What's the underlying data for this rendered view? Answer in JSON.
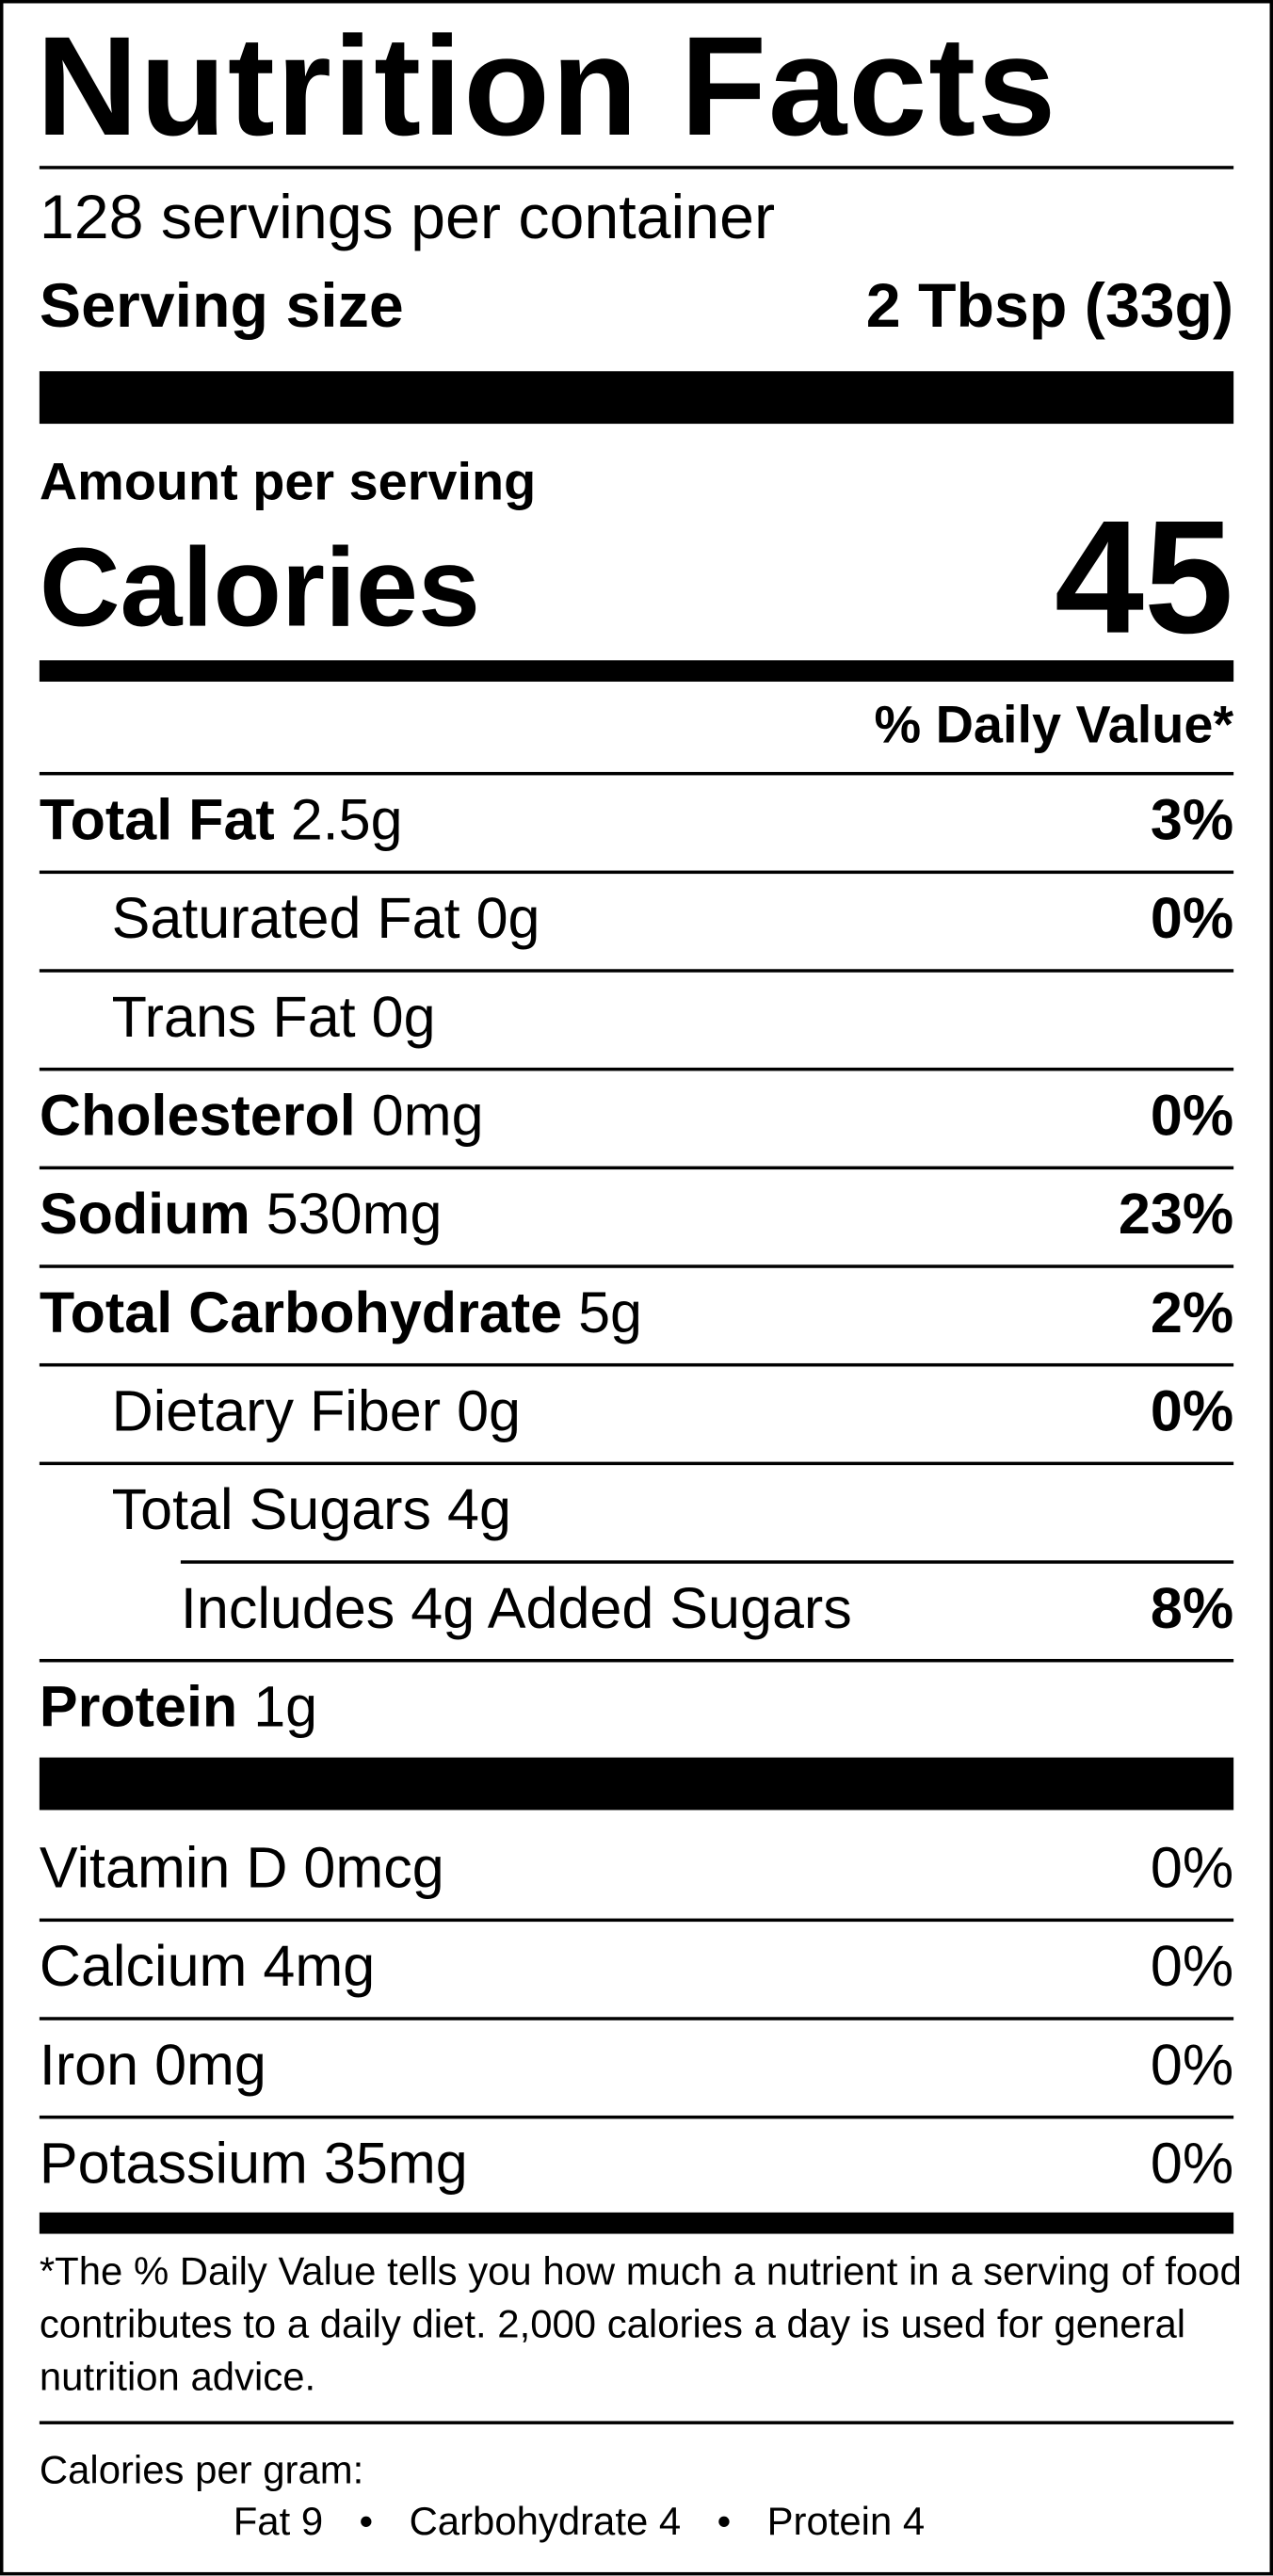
{
  "title": "Nutrition Facts",
  "servings": "128 servings per container",
  "serving_size": {
    "label": "Serving size",
    "value": "2 Tbsp (33g)"
  },
  "amount_per_serving": "Amount per serving",
  "calories": {
    "label": "Calories",
    "value": "45"
  },
  "daily_value_header": "% Daily Value*",
  "nutrients": [
    {
      "name": "Total Fat",
      "amount": "2.5g",
      "dv": "3%",
      "bold": true,
      "indent": 0
    },
    {
      "name": "Saturated Fat",
      "amount": "0g",
      "dv": "0%",
      "bold": false,
      "indent": 1
    },
    {
      "name": "Trans Fat",
      "amount": "0g",
      "bold": false,
      "indent": 1
    },
    {
      "name": "Cholesterol",
      "amount": "0mg",
      "dv": "0%",
      "bold": true,
      "indent": 0
    },
    {
      "name": "Sodium",
      "amount": "530mg",
      "dv": "23%",
      "bold": true,
      "indent": 0
    },
    {
      "name": "Total Carbohydrate",
      "amount": "5g",
      "dv": "2%",
      "bold": true,
      "indent": 0
    },
    {
      "name": "Dietary Fiber",
      "amount": "0g",
      "dv": "0%",
      "bold": false,
      "indent": 1
    },
    {
      "name": "Total Sugars",
      "amount": "4g",
      "bold": false,
      "indent": 1
    },
    {
      "name": "Includes 4g Added Sugars",
      "dv": "8%",
      "bold": false,
      "indent": 2
    },
    {
      "name": "Protein",
      "amount": "1g",
      "bold": true,
      "indent": 0
    }
  ],
  "vitamins": [
    {
      "name": "Vitamin D",
      "amount": "0mcg",
      "dv": "0%"
    },
    {
      "name": "Calcium",
      "amount": "4mg",
      "dv": "0%"
    },
    {
      "name": "Iron",
      "amount": "0mg",
      "dv": "0%"
    },
    {
      "name": "Potassium",
      "amount": "35mg",
      "dv": "0%"
    }
  ],
  "footnote": "*The % Daily Value tells you how much a nutrient in a serving of food contributes to a daily diet. 2,000 calories a day is used for general nutrition advice.",
  "calories_per_gram": {
    "label": "Calories per gram:",
    "items": [
      "Fat 9",
      "Carbohydrate 4",
      "Protein 4"
    ],
    "separator": "•"
  }
}
